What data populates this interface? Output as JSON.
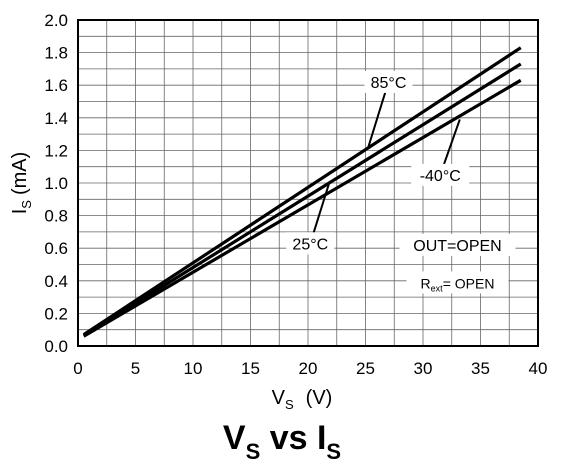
{
  "chart_data": {
    "type": "line",
    "title": "",
    "caption": {
      "a": "V",
      "a_sub": "S",
      "mid": " vs ",
      "b": "I",
      "b_sub": "S"
    },
    "xlabel": {
      "main": "V",
      "sub": "S",
      "unit": "(V)"
    },
    "ylabel": {
      "main": "I",
      "sub": "S",
      "unit": "(mA)"
    },
    "xlim": [
      0,
      40
    ],
    "ylim": [
      0.0,
      2.0
    ],
    "x_ticks": [
      "0",
      "5",
      "10",
      "15",
      "20",
      "25",
      "30",
      "35",
      "40"
    ],
    "y_ticks": [
      "0.0",
      "0.2",
      "0.4",
      "0.6",
      "0.8",
      "1.0",
      "1.2",
      "1.4",
      "1.6",
      "1.8",
      "2.0"
    ],
    "grid": true,
    "series": [
      {
        "name": "85°C",
        "x": [
          0.5,
          38.5
        ],
        "y": [
          0.07,
          1.83
        ]
      },
      {
        "name": "25°C",
        "x": [
          0.5,
          38.5
        ],
        "y": [
          0.065,
          1.73
        ]
      },
      {
        "name": "-40°C",
        "x": [
          0.5,
          38.5
        ],
        "y": [
          0.06,
          1.63
        ]
      }
    ],
    "annotations": [
      {
        "text": "85°C",
        "x": 27.0,
        "y": 1.62,
        "target_x": 25.2,
        "target_y": 1.21
      },
      {
        "text": "-40°C",
        "x": 31.5,
        "y": 1.05,
        "target_x": 33.2,
        "target_y": 1.39
      },
      {
        "text": "25°C",
        "x": 20.2,
        "y": 0.63,
        "target_x": 21.8,
        "target_y": 0.99
      },
      {
        "text": "OUT=OPEN",
        "x": 33.0,
        "y": 0.62
      },
      {
        "text": "R",
        "sub": "ext",
        "rest": "= OPEN",
        "x": 33.0,
        "y": 0.39
      }
    ]
  }
}
